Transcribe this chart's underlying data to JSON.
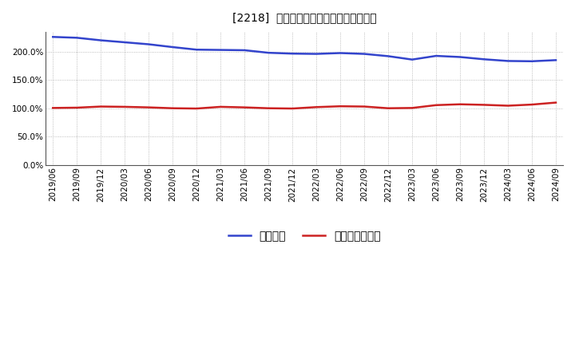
{
  "title": "[2218]  固定比率、固定長期適合率の推移",
  "x_labels": [
    "2019/06",
    "2019/09",
    "2019/12",
    "2020/03",
    "2020/06",
    "2020/09",
    "2020/12",
    "2021/03",
    "2021/06",
    "2021/09",
    "2021/12",
    "2022/03",
    "2022/06",
    "2022/09",
    "2022/12",
    "2023/03",
    "2023/06",
    "2023/09",
    "2023/12",
    "2024/03",
    "2024/06",
    "2024/09"
  ],
  "fixed_ratio": [
    226.0,
    224.5,
    220.0,
    216.5,
    213.0,
    208.0,
    203.5,
    203.0,
    202.5,
    198.0,
    196.5,
    196.0,
    197.5,
    196.0,
    192.0,
    186.0,
    192.5,
    190.5,
    186.5,
    183.5,
    183.0,
    185.0
  ],
  "fixed_long_ratio": [
    100.5,
    101.0,
    103.0,
    102.5,
    101.5,
    100.0,
    99.5,
    102.5,
    101.5,
    100.0,
    99.5,
    102.0,
    103.5,
    103.0,
    100.0,
    100.5,
    105.5,
    107.0,
    106.0,
    104.5,
    106.5,
    110.0
  ],
  "blue_color": "#3344cc",
  "red_color": "#cc2222",
  "bg_color": "#ffffff",
  "grid_color": "#aaaaaa",
  "ylim": [
    0,
    235
  ],
  "yticks": [
    0,
    50,
    100,
    150,
    200
  ],
  "ytick_labels": [
    "0.0%",
    "50.0%",
    "100.0%",
    "150.0%",
    "200.0%"
  ],
  "legend_fixed": "固定比率",
  "legend_fixed_long": "固定長期適合率",
  "title_fontsize": 12,
  "tick_fontsize": 7.5,
  "legend_fontsize": 9.5
}
